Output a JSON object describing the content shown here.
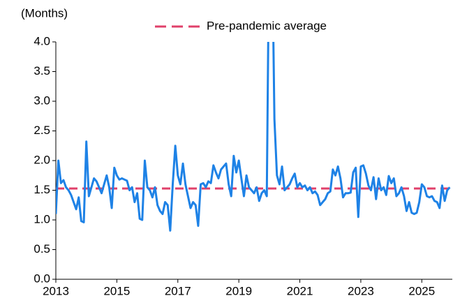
{
  "chart_data": {
    "type": "line",
    "y_axis_label": "(Months)",
    "xlim": [
      2013,
      2026
    ],
    "xticks": [
      2013,
      2015,
      2017,
      2019,
      2021,
      2023,
      2025
    ],
    "ylim": [
      0,
      4
    ],
    "yticks": [
      {
        "value": 0,
        "label": "0.0"
      },
      {
        "value": 0.5,
        "label": "0.5"
      },
      {
        "value": 1,
        "label": "1.0"
      },
      {
        "value": 1.5,
        "label": "1.5"
      },
      {
        "value": 2,
        "label": "2.0"
      },
      {
        "value": 2.5,
        "label": "2.5"
      },
      {
        "value": 3,
        "label": "3.0"
      },
      {
        "value": 3.5,
        "label": "3.5"
      },
      {
        "value": 4,
        "label": "4.0"
      }
    ],
    "x": [
      2013,
      2013.083,
      2013.167,
      2013.25,
      2013.333,
      2013.417,
      2013.5,
      2013.583,
      2013.667,
      2013.75,
      2013.833,
      2013.917,
      2014,
      2014.083,
      2014.167,
      2014.25,
      2014.333,
      2014.417,
      2014.5,
      2014.583,
      2014.667,
      2014.75,
      2014.833,
      2014.917,
      2015,
      2015.083,
      2015.167,
      2015.25,
      2015.333,
      2015.417,
      2015.5,
      2015.583,
      2015.667,
      2015.75,
      2015.833,
      2015.917,
      2016,
      2016.083,
      2016.167,
      2016.25,
      2016.333,
      2016.417,
      2016.5,
      2016.583,
      2016.667,
      2016.75,
      2016.833,
      2016.917,
      2017,
      2017.083,
      2017.167,
      2017.25,
      2017.333,
      2017.417,
      2017.5,
      2017.583,
      2017.667,
      2017.75,
      2017.833,
      2017.917,
      2018,
      2018.083,
      2018.167,
      2018.25,
      2018.333,
      2018.417,
      2018.5,
      2018.583,
      2018.667,
      2018.75,
      2018.833,
      2018.917,
      2019,
      2019.083,
      2019.167,
      2019.25,
      2019.333,
      2019.417,
      2019.5,
      2019.583,
      2019.667,
      2019.75,
      2019.833,
      2019.917,
      2020,
      2020.083,
      2020.167,
      2020.25,
      2020.333,
      2020.417,
      2020.5,
      2020.583,
      2020.667,
      2020.75,
      2020.833,
      2020.917,
      2021,
      2021.083,
      2021.167,
      2021.25,
      2021.333,
      2021.417,
      2021.5,
      2021.583,
      2021.667,
      2021.75,
      2021.833,
      2021.917,
      2022,
      2022.083,
      2022.167,
      2022.25,
      2022.333,
      2022.417,
      2022.5,
      2022.583,
      2022.667,
      2022.75,
      2022.833,
      2022.917,
      2023,
      2023.083,
      2023.167,
      2023.25,
      2023.333,
      2023.417,
      2023.5,
      2023.583,
      2023.667,
      2023.75,
      2023.833,
      2023.917,
      2024,
      2024.083,
      2024.167,
      2024.25,
      2024.333,
      2024.417,
      2024.5,
      2024.583,
      2024.667,
      2024.75,
      2024.833,
      2024.917,
      2025,
      2025.083,
      2025.167,
      2025.25,
      2025.333,
      2025.417,
      2025.5,
      2025.583,
      2025.667,
      2025.75,
      2025.833,
      2025.917
    ],
    "series": [
      {
        "color": "#1e82e6",
        "values": [
          1.1,
          2.0,
          1.62,
          1.67,
          1.55,
          1.5,
          1.42,
          1.3,
          1.18,
          1.38,
          0.98,
          0.96,
          2.32,
          1.4,
          1.55,
          1.7,
          1.65,
          1.55,
          1.45,
          1.6,
          1.75,
          1.55,
          1.2,
          1.88,
          1.75,
          1.68,
          1.7,
          1.68,
          1.66,
          1.5,
          1.55,
          1.3,
          1.45,
          1.02,
          1.0,
          2.0,
          1.55,
          1.5,
          1.38,
          1.55,
          1.25,
          1.15,
          1.1,
          1.3,
          1.25,
          0.82,
          1.6,
          2.25,
          1.75,
          1.6,
          1.95,
          1.6,
          1.4,
          1.2,
          1.3,
          1.25,
          0.9,
          1.6,
          1.62,
          1.55,
          1.65,
          1.62,
          1.92,
          1.8,
          1.7,
          1.85,
          1.9,
          1.95,
          1.6,
          1.4,
          2.08,
          1.8,
          2.0,
          1.7,
          1.4,
          1.75,
          1.55,
          1.5,
          1.45,
          1.55,
          1.32,
          1.45,
          1.5,
          1.4,
          6.0,
          6.0,
          2.7,
          1.75,
          1.6,
          1.9,
          1.5,
          1.55,
          1.6,
          1.7,
          1.78,
          1.55,
          1.62,
          1.55,
          1.58,
          1.5,
          1.55,
          1.45,
          1.48,
          1.42,
          1.25,
          1.3,
          1.35,
          1.45,
          1.48,
          1.85,
          1.75,
          1.9,
          1.7,
          1.38,
          1.45,
          1.45,
          1.46,
          1.8,
          1.88,
          1.05,
          1.9,
          1.92,
          1.78,
          1.58,
          1.5,
          1.72,
          1.35,
          1.7,
          1.5,
          1.55,
          1.42,
          1.74,
          1.62,
          1.7,
          1.4,
          1.45,
          1.55,
          1.4,
          1.15,
          1.3,
          1.12,
          1.1,
          1.12,
          1.3,
          1.6,
          1.55,
          1.4,
          1.38,
          1.4,
          1.32,
          1.3,
          1.2,
          1.58,
          1.32,
          1.5,
          1.55
        ]
      }
    ],
    "reference_lines": [
      {
        "name": "Pre-pandemic average",
        "value": 1.53,
        "color": "#e0406a"
      }
    ],
    "legend": "top"
  }
}
